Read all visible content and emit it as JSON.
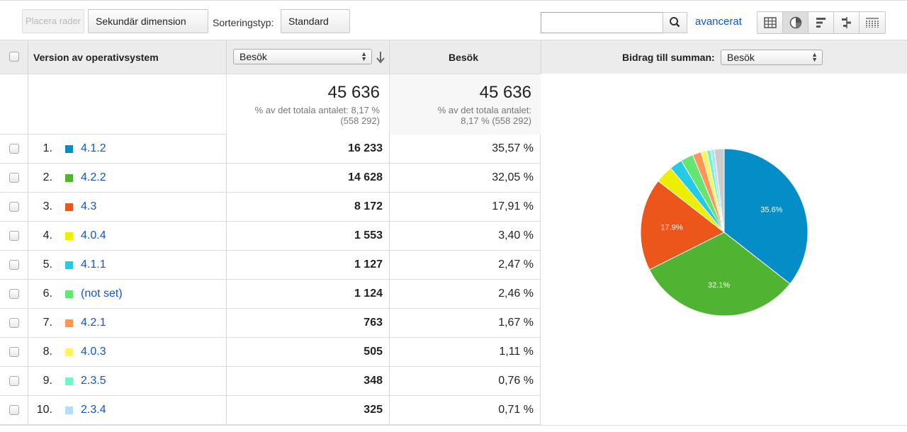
{
  "toolbar": {
    "place_rows": "Placera rader",
    "secondary_dimension": "Sekundär dimension",
    "sort_type_label": "Sorteringstyp:",
    "sort_type_value": "Standard",
    "search_placeholder": "",
    "advanced": "avancerat"
  },
  "table": {
    "col_dimension": "Version av operativsystem",
    "col_metric_select": "Besök",
    "col_metric": "Besök",
    "contribution_label": "Bidrag till summan:",
    "contribution_select": "Besök",
    "summary": {
      "total1": "45 636",
      "sub1_line1": "% av det totala antalet: 8,17 %",
      "sub1_line2": "(558 292)",
      "total2": "45 636",
      "sub2_line1": "% av det totala antalet:",
      "sub2_line2": "8,17 % (558 292)"
    },
    "rows": [
      {
        "num": "1.",
        "label": "4.1.2",
        "value": "16 233",
        "pct": "35,57 %",
        "color": "#058dc7"
      },
      {
        "num": "2.",
        "label": "4.2.2",
        "value": "14 628",
        "pct": "32,05 %",
        "color": "#50b432"
      },
      {
        "num": "3.",
        "label": "4.3",
        "value": "8 172",
        "pct": "17,91 %",
        "color": "#ed561b"
      },
      {
        "num": "4.",
        "label": "4.0.4",
        "value": "1 553",
        "pct": "3,40 %",
        "color": "#edef00"
      },
      {
        "num": "5.",
        "label": "4.1.1",
        "value": "1 127",
        "pct": "2,47 %",
        "color": "#24cbe5"
      },
      {
        "num": "6.",
        "label": "(not set)",
        "value": "1 124",
        "pct": "2,46 %",
        "color": "#64e572"
      },
      {
        "num": "7.",
        "label": "4.2.1",
        "value": "763",
        "pct": "1,67 %",
        "color": "#ff9655"
      },
      {
        "num": "8.",
        "label": "4.0.3",
        "value": "505",
        "pct": "1,11 %",
        "color": "#fff263"
      },
      {
        "num": "9.",
        "label": "2.3.5",
        "value": "348",
        "pct": "0,76 %",
        "color": "#6af9c4"
      },
      {
        "num": "10.",
        "label": "2.3.4",
        "value": "325",
        "pct": "0,71 %",
        "color": "#b2deff"
      }
    ]
  },
  "chart_data": {
    "type": "pie",
    "series": [
      {
        "label": "4.1.2",
        "value": 35.57,
        "color": "#058dc7",
        "display": "35.6%"
      },
      {
        "label": "4.2.2",
        "value": 32.05,
        "color": "#50b432",
        "display": "32.1%"
      },
      {
        "label": "4.3",
        "value": 17.91,
        "color": "#ed561b",
        "display": "17.9%"
      },
      {
        "label": "4.0.4",
        "value": 3.4,
        "color": "#edef00",
        "display": ""
      },
      {
        "label": "4.1.1",
        "value": 2.47,
        "color": "#24cbe5",
        "display": ""
      },
      {
        "label": "(not set)",
        "value": 2.46,
        "color": "#64e572",
        "display": ""
      },
      {
        "label": "4.2.1",
        "value": 1.67,
        "color": "#ff9655",
        "display": ""
      },
      {
        "label": "4.0.3",
        "value": 1.11,
        "color": "#fff263",
        "display": ""
      },
      {
        "label": "2.3.5",
        "value": 0.76,
        "color": "#6af9c4",
        "display": ""
      },
      {
        "label": "2.3.4",
        "value": 0.71,
        "color": "#b2deff",
        "display": ""
      },
      {
        "label": "",
        "value": 1.89,
        "color": "#cccccc",
        "display": ""
      }
    ]
  }
}
